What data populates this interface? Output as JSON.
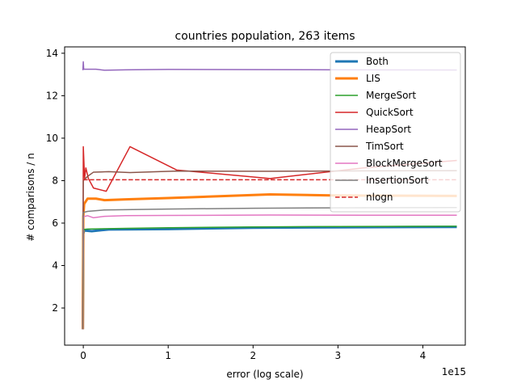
{
  "chart_data": {
    "type": "line",
    "title": "countries population, 263 items",
    "xlabel": "error (log scale)",
    "ylabel": "# comparisons / n",
    "x_offset_label": "1e15",
    "xlim": [
      -0.22,
      4.5
    ],
    "ylim": [
      0.25,
      14.3
    ],
    "x_ticks": [
      0,
      1,
      2,
      3,
      4
    ],
    "x_tick_labels": [
      "0",
      "1",
      "2",
      "3",
      "4"
    ],
    "y_ticks": [
      2,
      4,
      6,
      8,
      10,
      12,
      14
    ],
    "y_tick_labels": [
      "2",
      "4",
      "6",
      "8",
      "10",
      "12",
      "14"
    ],
    "grid": false,
    "legend_position": "top-right",
    "series": [
      {
        "name": "Both",
        "color": "#1f77b4",
        "style": "solid",
        "weight": "thick",
        "points": [
          [
            -0.005,
            1.0
          ],
          [
            0.0,
            5.5
          ],
          [
            0.01,
            5.65
          ],
          [
            0.1,
            5.62
          ],
          [
            0.3,
            5.7
          ],
          [
            1.0,
            5.72
          ],
          [
            2.0,
            5.78
          ],
          [
            3.0,
            5.8
          ],
          [
            4.4,
            5.82
          ]
        ]
      },
      {
        "name": "LIS",
        "color": "#ff7f0e",
        "style": "solid",
        "weight": "thick",
        "points": [
          [
            -0.005,
            1.0
          ],
          [
            0.0,
            6.3
          ],
          [
            0.01,
            6.9
          ],
          [
            0.05,
            7.15
          ],
          [
            0.15,
            7.15
          ],
          [
            0.25,
            7.08
          ],
          [
            0.5,
            7.12
          ],
          [
            1.0,
            7.18
          ],
          [
            1.5,
            7.25
          ],
          [
            2.2,
            7.35
          ],
          [
            3.0,
            7.3
          ],
          [
            4.4,
            7.28
          ]
        ]
      },
      {
        "name": "MergeSort",
        "color": "#2ca02c",
        "style": "solid",
        "weight": "normal",
        "points": [
          [
            -0.005,
            1.0
          ],
          [
            0.0,
            5.7
          ],
          [
            0.05,
            5.72
          ],
          [
            0.5,
            5.75
          ],
          [
            1.0,
            5.78
          ],
          [
            2.0,
            5.82
          ],
          [
            3.0,
            5.84
          ],
          [
            4.4,
            5.85
          ]
        ]
      },
      {
        "name": "QuickSort",
        "color": "#d62728",
        "style": "solid",
        "weight": "normal",
        "points": [
          [
            -0.005,
            1.0
          ],
          [
            0.0,
            9.6
          ],
          [
            0.015,
            8.1
          ],
          [
            0.03,
            8.6
          ],
          [
            0.06,
            8.1
          ],
          [
            0.12,
            7.65
          ],
          [
            0.27,
            7.5
          ],
          [
            0.55,
            9.6
          ],
          [
            1.1,
            8.5
          ],
          [
            2.2,
            8.1
          ],
          [
            3.3,
            8.6
          ],
          [
            4.4,
            8.95
          ]
        ]
      },
      {
        "name": "HeapSort",
        "color": "#9467bd",
        "style": "solid",
        "weight": "normal",
        "points": [
          [
            -0.005,
            13.2
          ],
          [
            0.0,
            13.6
          ],
          [
            0.005,
            13.25
          ],
          [
            0.15,
            13.25
          ],
          [
            0.25,
            13.2
          ],
          [
            0.5,
            13.22
          ],
          [
            1.0,
            13.24
          ],
          [
            2.0,
            13.23
          ],
          [
            3.0,
            13.22
          ],
          [
            4.4,
            13.21
          ]
        ]
      },
      {
        "name": "TimSort",
        "color": "#8c564b",
        "style": "solid",
        "weight": "normal",
        "points": [
          [
            -0.005,
            1.0
          ],
          [
            0.0,
            8.0
          ],
          [
            0.05,
            8.2
          ],
          [
            0.12,
            8.4
          ],
          [
            0.3,
            8.42
          ],
          [
            0.55,
            8.38
          ],
          [
            1.1,
            8.45
          ],
          [
            2.2,
            8.44
          ],
          [
            3.3,
            8.46
          ],
          [
            4.4,
            8.47
          ]
        ]
      },
      {
        "name": "BlockMergeSort",
        "color": "#e377c2",
        "style": "solid",
        "weight": "normal",
        "points": [
          [
            -0.005,
            1.0
          ],
          [
            0.0,
            6.3
          ],
          [
            0.05,
            6.35
          ],
          [
            0.12,
            6.25
          ],
          [
            0.25,
            6.32
          ],
          [
            0.5,
            6.35
          ],
          [
            1.0,
            6.36
          ],
          [
            2.2,
            6.38
          ],
          [
            3.3,
            6.37
          ],
          [
            4.4,
            6.37
          ]
        ]
      },
      {
        "name": "InsertionSort",
        "color": "#7f7f7f",
        "style": "solid",
        "weight": "normal",
        "points": [
          [
            -0.005,
            1.0
          ],
          [
            0.0,
            6.5
          ],
          [
            0.05,
            6.55
          ],
          [
            0.25,
            6.62
          ],
          [
            1.0,
            6.66
          ],
          [
            2.0,
            6.7
          ],
          [
            3.0,
            6.72
          ],
          [
            4.4,
            6.73
          ]
        ]
      },
      {
        "name": "nlogn",
        "color": "#d62728",
        "style": "dashed",
        "weight": "normal",
        "points": [
          [
            0.0,
            8.04
          ],
          [
            4.4,
            8.04
          ]
        ]
      }
    ]
  }
}
